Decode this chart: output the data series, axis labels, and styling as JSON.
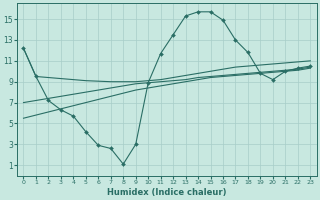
{
  "xlabel": "Humidex (Indice chaleur)",
  "bg_color": "#c8e8e0",
  "line_color": "#2a6e65",
  "grid_color": "#a8cec8",
  "xlim": [
    -0.5,
    23.5
  ],
  "ylim": [
    0,
    16.5
  ],
  "xticks": [
    0,
    1,
    2,
    3,
    4,
    5,
    6,
    7,
    8,
    9,
    10,
    11,
    12,
    13,
    14,
    15,
    16,
    17,
    18,
    19,
    20,
    21,
    22,
    23
  ],
  "yticks": [
    1,
    3,
    5,
    7,
    9,
    11,
    13,
    15
  ],
  "curve_wave_x": [
    0,
    1,
    2,
    3,
    4,
    5,
    6,
    7,
    8,
    9,
    10,
    11,
    12,
    13,
    14,
    15,
    16,
    17,
    18,
    19,
    20,
    21,
    22,
    23
  ],
  "curve_wave_y": [
    12.2,
    9.5,
    7.2,
    6.3,
    5.7,
    4.2,
    2.9,
    2.6,
    1.1,
    3.0,
    8.9,
    11.7,
    13.5,
    15.3,
    15.7,
    15.7,
    14.9,
    13.0,
    11.8,
    9.8,
    9.2,
    10.0,
    10.3,
    10.5
  ],
  "curve_flat_x": [
    0,
    1,
    2,
    3,
    4,
    5,
    6,
    7,
    8,
    9,
    10,
    11,
    12,
    13,
    14,
    15,
    16,
    17,
    18,
    19,
    20,
    21,
    22,
    23
  ],
  "curve_flat_y": [
    12.2,
    9.5,
    9.4,
    9.3,
    9.2,
    9.1,
    9.05,
    9.0,
    9.0,
    9.0,
    9.1,
    9.2,
    9.4,
    9.6,
    9.8,
    10.0,
    10.2,
    10.4,
    10.5,
    10.6,
    10.7,
    10.8,
    10.9,
    11.0
  ],
  "curve_rise1_x": [
    0,
    1,
    2,
    3,
    4,
    5,
    6,
    7,
    8,
    9,
    10,
    11,
    12,
    13,
    14,
    15,
    16,
    17,
    18,
    19,
    20,
    21,
    22,
    23
  ],
  "curve_rise1_y": [
    7.0,
    7.2,
    7.4,
    7.6,
    7.8,
    8.0,
    8.2,
    8.4,
    8.6,
    8.8,
    8.9,
    9.0,
    9.1,
    9.2,
    9.4,
    9.5,
    9.6,
    9.7,
    9.8,
    9.9,
    10.0,
    10.1,
    10.2,
    10.4
  ],
  "curve_rise2_x": [
    0,
    1,
    2,
    3,
    4,
    5,
    6,
    7,
    8,
    9,
    10,
    11,
    12,
    13,
    14,
    15,
    16,
    17,
    18,
    19,
    20,
    21,
    22,
    23
  ],
  "curve_rise2_y": [
    5.5,
    5.8,
    6.1,
    6.4,
    6.7,
    7.0,
    7.3,
    7.6,
    7.9,
    8.2,
    8.4,
    8.6,
    8.8,
    9.0,
    9.2,
    9.4,
    9.5,
    9.6,
    9.7,
    9.8,
    9.9,
    10.0,
    10.1,
    10.3
  ]
}
